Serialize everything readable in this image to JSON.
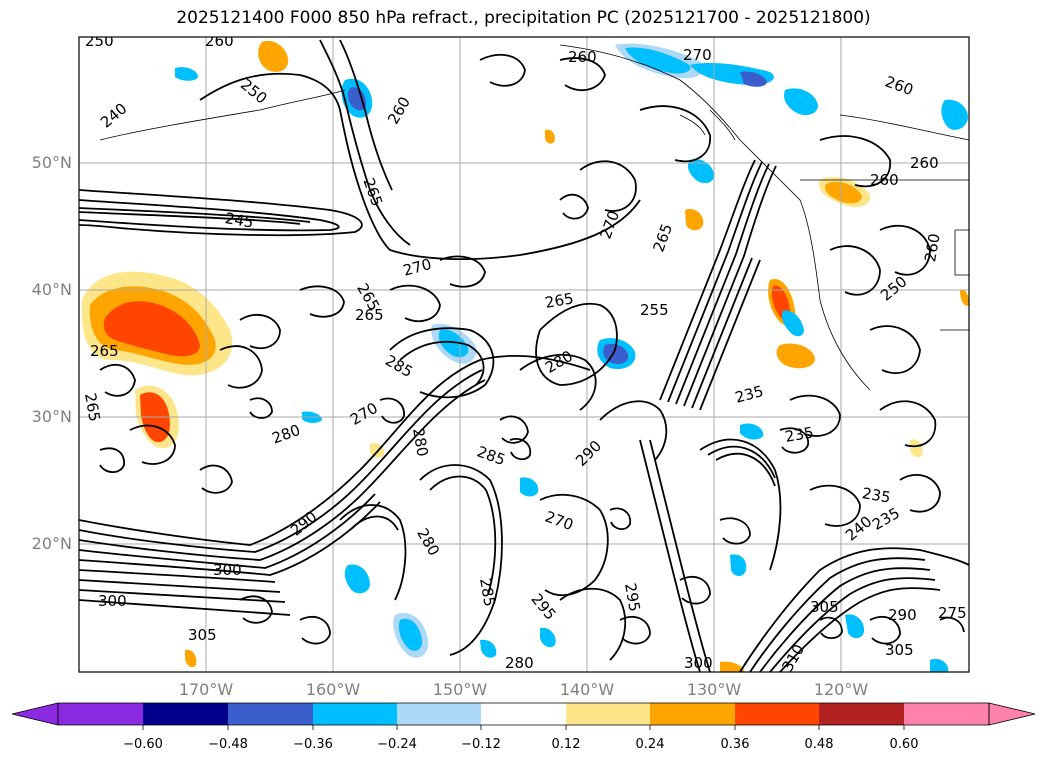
{
  "title": "2025121400 F000 850 hPa refract., precipitation PC (2025121700 - 2025121800)",
  "map": {
    "lat_labels": [
      "50°N",
      "40°N",
      "30°N",
      "20°N"
    ],
    "lon_labels": [
      "170°W",
      "160°W",
      "150°W",
      "140°W",
      "130°W",
      "120°W"
    ],
    "contour_labels": [
      "250",
      "260",
      "240",
      "250",
      "260",
      "270",
      "260",
      "260",
      "245",
      "265",
      "270",
      "270",
      "265",
      "265",
      "260",
      "265",
      "250",
      "255",
      "260",
      "260",
      "265",
      "280",
      "265",
      "265",
      "285",
      "280",
      "270",
      "235",
      "235",
      "280",
      "290",
      "235",
      "240",
      "235",
      "285",
      "290",
      "270",
      "280",
      "280",
      "285",
      "295",
      "300",
      "305",
      "310",
      "300",
      "305",
      "290",
      "295",
      "300",
      "305",
      "275"
    ]
  },
  "colorbar": {
    "ticks": [
      "−0.60",
      "−0.48",
      "−0.36",
      "−0.24",
      "−0.12",
      "0.12",
      "0.24",
      "0.36",
      "0.48",
      "0.60"
    ],
    "colors": [
      "#8a2be2",
      "#00008b",
      "#3a5fcd",
      "#00bfff",
      "#add8f7",
      "#ffffff",
      "#fde68a",
      "#ffa500",
      "#ff4500",
      "#b22222",
      "#ff82ab"
    ]
  }
}
